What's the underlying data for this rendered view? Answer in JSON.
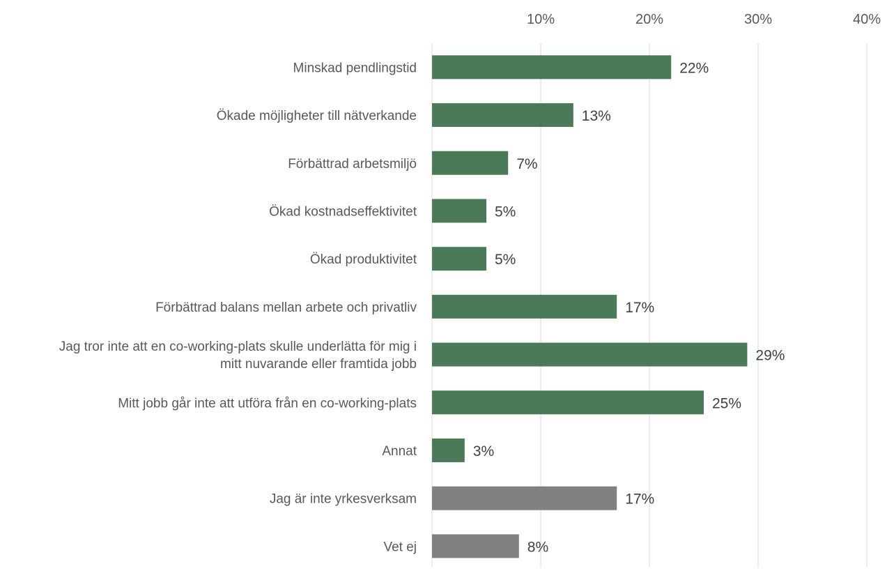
{
  "chart_data": {
    "type": "bar",
    "orientation": "horizontal",
    "title": "",
    "xlabel": "",
    "ylabel": "",
    "xlim": [
      0,
      40
    ],
    "x_ticks": [
      {
        "value": 10,
        "label": "10%"
      },
      {
        "value": 20,
        "label": "20%"
      },
      {
        "value": 30,
        "label": "30%"
      },
      {
        "value": 40,
        "label": "40%"
      }
    ],
    "grid": true,
    "axis_position": "top",
    "colors": {
      "primary": "#4a7a58",
      "secondary": "#808080",
      "grid": "#d9d9d9",
      "text": "#595959",
      "label": "#404040"
    },
    "categories": [
      {
        "label": "Minskad pendlingstid",
        "value": 22,
        "value_label": "22%",
        "color": "#4a7a58"
      },
      {
        "label": "Ökade möjligheter till nätverkande",
        "value": 13,
        "value_label": "13%",
        "color": "#4a7a58"
      },
      {
        "label": "Förbättrad arbetsmiljö",
        "value": 7,
        "value_label": "7%",
        "color": "#4a7a58"
      },
      {
        "label": "Ökad kostnadseffektivitet",
        "value": 5,
        "value_label": "5%",
        "color": "#4a7a58"
      },
      {
        "label": "Ökad produktivitet",
        "value": 5,
        "value_label": "5%",
        "color": "#4a7a58"
      },
      {
        "label": "Förbättrad balans mellan arbete och privatliv",
        "value": 17,
        "value_label": "17%",
        "color": "#4a7a58"
      },
      {
        "label": "Jag tror inte att en co-working-plats skulle underlätta för mig i mitt nuvarande eller framtida jobb",
        "label_lines": [
          "Jag tror inte att en co-working-plats skulle underlätta för mig i",
          "mitt nuvarande eller framtida jobb"
        ],
        "value": 29,
        "value_label": "29%",
        "color": "#4a7a58"
      },
      {
        "label": "Mitt jobb går inte att utföra från en co-working-plats",
        "value": 25,
        "value_label": "25%",
        "color": "#4a7a58"
      },
      {
        "label": "Annat",
        "value": 3,
        "value_label": "3%",
        "color": "#4a7a58"
      },
      {
        "label": "Jag är inte yrkesverksam",
        "value": 17,
        "value_label": "17%",
        "color": "#808080"
      },
      {
        "label": "Vet ej",
        "value": 8,
        "value_label": "8%",
        "color": "#808080"
      }
    ]
  }
}
